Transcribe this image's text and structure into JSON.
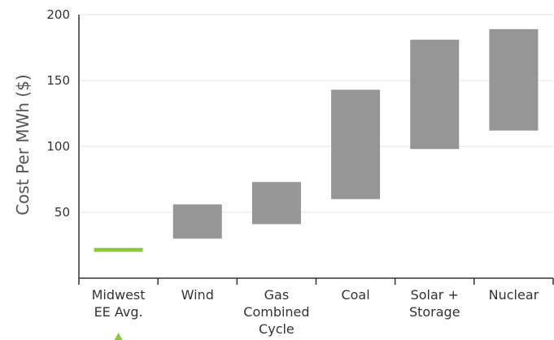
{
  "chart_data": {
    "type": "bar",
    "subtype": "floating-range",
    "title": "",
    "xlabel": "",
    "ylabel": "Cost Per MWh ($)",
    "ylim": [
      0,
      200
    ],
    "yticks": [
      50,
      100,
      150,
      200
    ],
    "grid": true,
    "categories": [
      {
        "lines": [
          "Midwest",
          "EE Avg."
        ],
        "highlight": true
      },
      {
        "lines": [
          "Wind"
        ],
        "highlight": false
      },
      {
        "lines": [
          "Gas",
          "Combined",
          "Cycle"
        ],
        "highlight": false
      },
      {
        "lines": [
          "Coal"
        ],
        "highlight": false
      },
      {
        "lines": [
          "Solar +",
          "Storage"
        ],
        "highlight": false
      },
      {
        "lines": [
          "Nuclear"
        ],
        "highlight": false
      }
    ],
    "ranges": [
      [
        20,
        23
      ],
      [
        30,
        56
      ],
      [
        41,
        73
      ],
      [
        60,
        143
      ],
      [
        98,
        181
      ],
      [
        112,
        189
      ]
    ],
    "colors": {
      "bar": "#969696",
      "highlight": "#8dc63f",
      "grid": "#e6e6e6",
      "axis": "#333333",
      "text": "#333333"
    }
  }
}
